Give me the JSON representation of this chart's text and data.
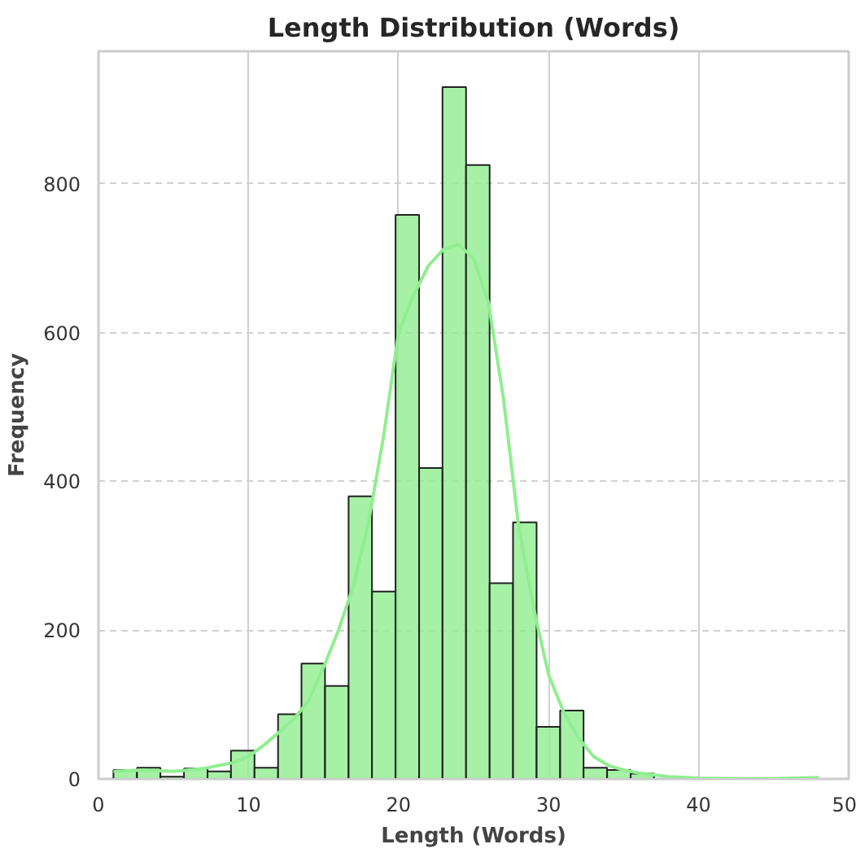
{
  "chart_data": {
    "type": "histogram",
    "title": "Length Distribution (Words)",
    "xlabel": "Length (Words)",
    "ylabel": "Frequency",
    "bins": [
      1,
      2.57,
      4.13,
      5.7,
      7.27,
      8.83,
      10.4,
      11.97,
      13.53,
      15.1,
      16.67,
      18.23,
      19.8,
      21.37,
      22.93,
      24.5,
      26.07,
      27.63,
      29.2,
      30.77,
      32.33,
      33.9,
      35.47,
      37.03,
      38.6,
      40.17,
      41.73,
      43.3,
      44.87,
      46.43,
      48
    ],
    "values": [
      12,
      15,
      3,
      14,
      10,
      38,
      15,
      87,
      155,
      125,
      380,
      252,
      758,
      418,
      930,
      825,
      263,
      345,
      70,
      92,
      15,
      12,
      7,
      0,
      0,
      0,
      0,
      0,
      0,
      null
    ],
    "color": "#90ee90",
    "series": [
      {
        "type": "line",
        "color": "#90ee90",
        "x": [
          1,
          3,
          5,
          7,
          9,
          10,
          11,
          12,
          13,
          14,
          15,
          16,
          17,
          18,
          19,
          20,
          21,
          22,
          23,
          24,
          25,
          26,
          27,
          28,
          29,
          30,
          31,
          32,
          33,
          34,
          35,
          36,
          38,
          40,
          44,
          48
        ],
        "values": [
          10,
          12,
          10,
          14,
          22,
          30,
          45,
          62,
          80,
          105,
          150,
          200,
          260,
          345,
          460,
          600,
          650,
          690,
          712,
          718,
          700,
          640,
          510,
          340,
          230,
          140,
          90,
          55,
          30,
          18,
          12,
          8,
          3,
          1,
          0,
          2
        ]
      }
    ],
    "xlim": [
      0,
      50
    ],
    "xticks": [
      0,
      10,
      20,
      30,
      40,
      50
    ],
    "ylim": [
      0,
      978
    ],
    "yticks": [
      0,
      200,
      400,
      600,
      800
    ],
    "grid": true
  }
}
